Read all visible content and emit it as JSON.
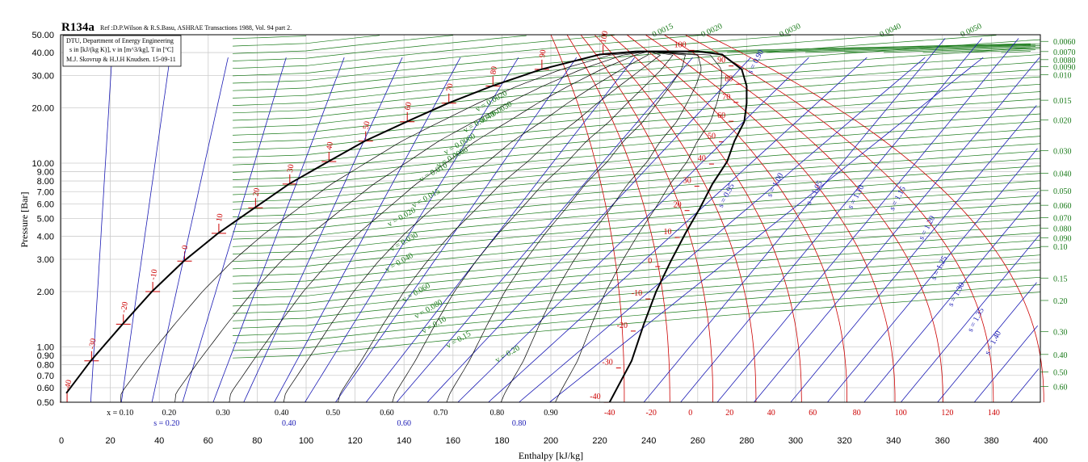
{
  "title": "R134a",
  "reference": "Ref :D.P.Wilson & R.S.Basu, ASHRAE Transactions 1988, Vol. 94 part 2.",
  "info_box": [
    "DTU, Department of Energy Engineering",
    "s in [kJ/(kg K)], v in [m^3/kg], T in [ºC]",
    "M.J. Skovrup & H.J.H Knudsen. 15-09-11"
  ],
  "colors": {
    "isotherm": "#cc0000",
    "isentrope": "#1a1ab4",
    "isochore": "#197a19",
    "quality": "#000000",
    "saturation": "#000000",
    "grid": "#cccccc"
  },
  "chart_data": {
    "type": "line",
    "xlabel": "Enthalpy [kJ/kg]",
    "ylabel": "Pressure [Bar]",
    "xlim": [
      0,
      400
    ],
    "ylim": [
      0.5,
      50
    ],
    "y_scale": "log",
    "grid": true,
    "x_ticks": [
      "0",
      "20",
      "40",
      "60",
      "80",
      "100",
      "120",
      "140",
      "160",
      "180",
      "200",
      "220",
      "240",
      "260",
      "280",
      "300",
      "320",
      "340",
      "360",
      "380",
      "400"
    ],
    "y_ticks": [
      "50.00",
      "40.00",
      "30.00",
      "20.00",
      "10.00",
      "9.00",
      "8.00",
      "7.00",
      "6.00",
      "5.00",
      "4.00",
      "3.00",
      "2.00",
      "1.00",
      "0.90",
      "0.80",
      "0.70",
      "0.60",
      "0.50"
    ],
    "saturation_dome": {
      "liquid": [
        [
          2,
          0.56
        ],
        [
          12,
          0.84
        ],
        [
          25,
          1.33
        ],
        [
          37,
          2.0
        ],
        [
          50,
          2.93
        ],
        [
          64,
          4.15
        ],
        [
          79,
          5.72
        ],
        [
          93,
          7.7
        ],
        [
          109,
          10.2
        ],
        [
          124,
          13.2
        ],
        [
          141,
          16.8
        ],
        [
          158,
          21.2
        ],
        [
          176,
          26.3
        ],
        [
          196,
          32.4
        ],
        [
          220,
          39.0
        ],
        [
          235,
          40.6
        ]
      ],
      "vapor": [
        [
          224,
          0.5
        ],
        [
          233,
          0.84
        ],
        [
          238,
          1.33
        ],
        [
          243,
          2.0
        ],
        [
          249,
          2.93
        ],
        [
          255,
          4.15
        ],
        [
          261,
          5.72
        ],
        [
          266,
          7.7
        ],
        [
          272,
          10.2
        ],
        [
          275,
          13.2
        ],
        [
          279,
          16.8
        ],
        [
          280,
          21.2
        ],
        [
          280,
          26.3
        ],
        [
          278,
          32.4
        ],
        [
          270,
          39.0
        ],
        [
          260,
          40.6
        ],
        [
          235,
          40.6
        ]
      ]
    },
    "critical_point": [
      240,
      40.6
    ],
    "saturation_temperature_labels": [
      {
        "text": "-40",
        "h": 2,
        "p": 0.5
      },
      {
        "text": "-30",
        "h": 12,
        "p": 0.84
      },
      {
        "text": "-20",
        "h": 25,
        "p": 1.33
      },
      {
        "text": "-10",
        "h": 37,
        "p": 2.0
      },
      {
        "text": "0",
        "h": 50,
        "p": 2.93
      },
      {
        "text": "10",
        "h": 64,
        "p": 4.15
      },
      {
        "text": "20",
        "h": 79,
        "p": 5.72
      },
      {
        "text": "30",
        "h": 93,
        "p": 7.7
      },
      {
        "text": "40",
        "h": 109,
        "p": 10.2
      },
      {
        "text": "50",
        "h": 124,
        "p": 13.2
      },
      {
        "text": "60",
        "h": 141,
        "p": 16.8
      },
      {
        "text": "70",
        "h": 158,
        "p": 21.2
      },
      {
        "text": "80",
        "h": 176,
        "p": 26.3
      },
      {
        "text": "90",
        "h": 196,
        "p": 32.4
      },
      {
        "text": "100",
        "h": 221,
        "p": 39.0
      }
    ],
    "vapor_temperature_labels": [
      {
        "text": "-40",
        "h": 221,
        "p": 0.52
      },
      {
        "text": "-30",
        "h": 226,
        "p": 0.8
      },
      {
        "text": "-20",
        "h": 232,
        "p": 1.27
      },
      {
        "text": "-10",
        "h": 238,
        "p": 1.9
      },
      {
        "text": "0",
        "h": 242,
        "p": 2.85
      },
      {
        "text": "10",
        "h": 250,
        "p": 4.1
      },
      {
        "text": "20",
        "h": 254,
        "p": 5.75
      },
      {
        "text": "30",
        "h": 258,
        "p": 7.8
      },
      {
        "text": "40",
        "h": 264,
        "p": 10.3
      },
      {
        "text": "50",
        "h": 268,
        "p": 13.6
      },
      {
        "text": "60",
        "h": 272,
        "p": 17.6
      },
      {
        "text": "70",
        "h": 274,
        "p": 22.3
      },
      {
        "text": "80",
        "h": 275,
        "p": 28.0
      },
      {
        "text": "90",
        "h": 272,
        "p": 35.2
      },
      {
        "text": "100",
        "h": 256,
        "p": 42.8
      }
    ],
    "superheat_isotherm_axis_labels": [
      "-40",
      "-20",
      "0",
      "20",
      "40",
      "60",
      "80",
      "100",
      "120",
      "140"
    ],
    "superheat_isotherm_axis_h": [
      224,
      241,
      257,
      273,
      290,
      307,
      325,
      343,
      362,
      381
    ],
    "quality_labels": [
      "x = 0.10",
      "0.20",
      "0.30",
      "0.40",
      "0.50",
      "0.60",
      "0.70",
      "0.80",
      "0.90"
    ],
    "quality_label_h": [
      24,
      44,
      66,
      90,
      111,
      133,
      155,
      178,
      200
    ],
    "entropy_bottom_labels": [
      "s = 0.20",
      "0.40",
      "0.60",
      "0.80"
    ],
    "entropy_bottom_h": [
      43,
      93,
      140,
      187
    ],
    "entropy_vapor_labels": [
      {
        "text": "s = 0.90",
        "h": 282,
        "p": 30.5
      },
      {
        "text": "s = 0.95",
        "h": 270,
        "p": 5.7
      },
      {
        "text": "s = 1.00",
        "h": 290,
        "p": 6.5
      },
      {
        "text": "s = 1.05",
        "h": 306,
        "p": 5.9
      },
      {
        "text": "s = 1.10",
        "h": 323,
        "p": 5.6
      },
      {
        "text": "s = 1.15",
        "h": 340,
        "p": 5.5
      },
      {
        "text": "s = 1.20",
        "h": 352,
        "p": 3.8
      },
      {
        "text": "s = 1.25",
        "h": 357,
        "p": 2.3
      },
      {
        "text": "s = 1.30",
        "h": 364,
        "p": 1.65
      },
      {
        "text": "s = 1.35",
        "h": 372,
        "p": 1.2
      },
      {
        "text": "s = 1.40",
        "h": 379,
        "p": 0.9
      }
    ],
    "isochore_right_labels": [
      "0.0060",
      "0.0070",
      "0.0080",
      "0.0090",
      "0.010",
      "0.015",
      "0.020",
      "0.030",
      "0.040",
      "0.050",
      "0.060",
      "0.070",
      "0.080",
      "0.090",
      "0.10",
      "0.15",
      "0.20",
      "0.30",
      "0.40",
      "0.50",
      "0.60"
    ],
    "isochore_right_p": [
      46.0,
      40.5,
      36.6,
      33.5,
      30.3,
      22.0,
      17.2,
      11.7,
      8.8,
      7.1,
      5.9,
      5.05,
      4.42,
      3.93,
      3.52,
      2.37,
      1.79,
      1.21,
      0.91,
      0.73,
      0.61
    ],
    "isochore_top_labels": [
      "0.0015",
      "0.0020",
      "0.0030",
      "0.0040",
      "0.0050"
    ],
    "isochore_top_h": [
      242,
      262,
      294,
      335,
      368
    ],
    "isochore_inside_labels": [
      {
        "text": "v = 0.0020",
        "h": 170,
        "p": 19.0
      },
      {
        "text": "v = 0.0030",
        "h": 172,
        "p": 16.6
      },
      {
        "text": "v = 0.0040",
        "h": 165,
        "p": 14.6
      },
      {
        "text": "v = 0.0060",
        "h": 157,
        "p": 11.1
      },
      {
        "text": "v = 0.0080",
        "h": 154,
        "p": 9.4
      },
      {
        "text": "v = 0.010",
        "h": 147,
        "p": 7.9
      },
      {
        "text": "v = 0.015",
        "h": 144,
        "p": 5.7
      },
      {
        "text": "v = 0.020",
        "h": 134,
        "p": 4.5
      },
      {
        "text": "v = 0.030",
        "h": 135,
        "p": 3.3
      },
      {
        "text": "v = 0.040",
        "h": 133,
        "p": 2.55
      },
      {
        "text": "v = 0.060",
        "h": 140,
        "p": 1.75
      },
      {
        "text": "v = 0.080",
        "h": 145,
        "p": 1.42
      },
      {
        "text": "v = 0.10",
        "h": 148,
        "p": 1.18
      },
      {
        "text": "v = 0.15",
        "h": 158,
        "p": 0.98
      },
      {
        "text": "v = 0.20",
        "h": 178,
        "p": 0.82
      }
    ]
  }
}
